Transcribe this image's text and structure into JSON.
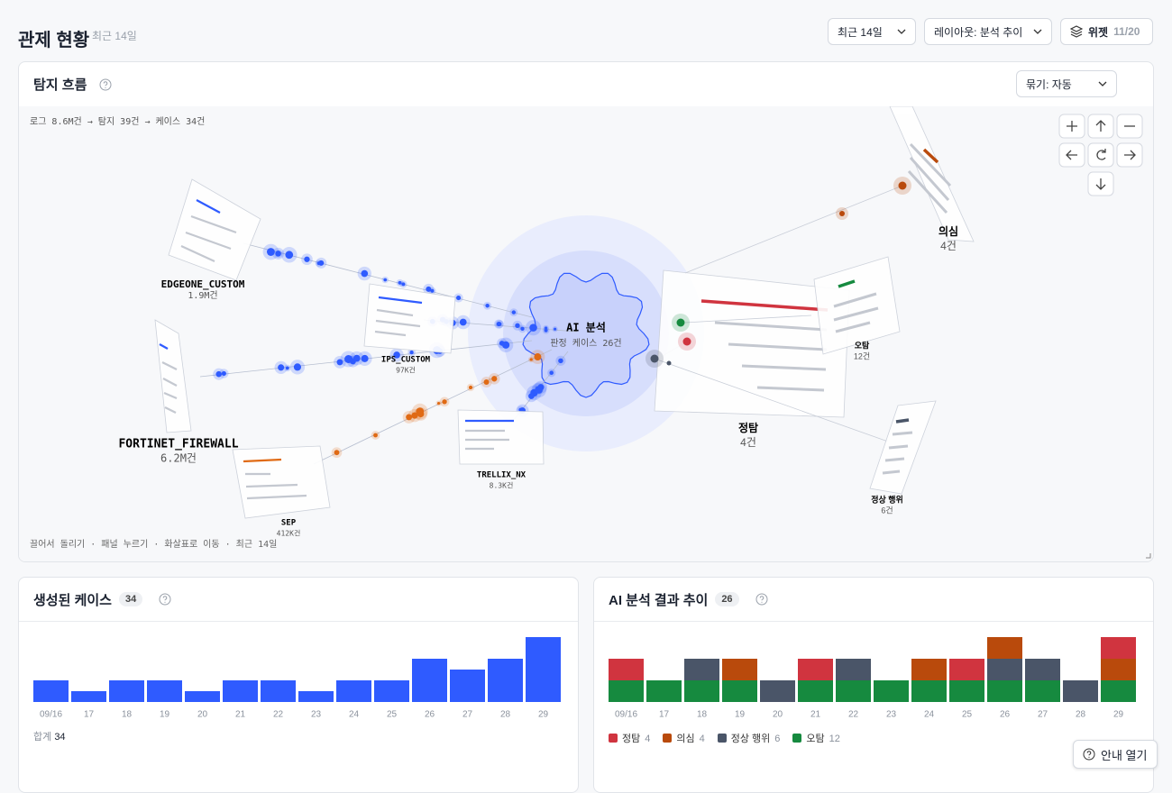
{
  "header": {
    "title": "관제 현황",
    "subtitle": "최근 14일",
    "range_button": "최근 14일",
    "layout_button": "레이아웃: 분석 추이",
    "widget_button": "위젯",
    "widget_count": "11/20"
  },
  "flow": {
    "title": "탐지 흐름",
    "group_select": "묶기: 자동",
    "summary": "로그 8.6M건 → 탐지 39건 → 케이스 34건",
    "hint": "끌어서 돌리기 · 패널 누르기 · 화살표로 이동 · 최근 14일",
    "center": {
      "label": "AI 분석",
      "sublabel": "판정 케이스 26건"
    },
    "sources": [
      {
        "name": "EDGEONE_CUSTOM",
        "count": "1.9M건"
      },
      {
        "name": "FORTINET_FIREWALL",
        "count": "6.2M건"
      },
      {
        "name": "IPS_CUSTOM",
        "count": "97K건"
      },
      {
        "name": "TRELLIX_NX",
        "count": "8.3K건"
      },
      {
        "name": "SEP",
        "count": "412K건"
      }
    ],
    "outcomes": [
      {
        "name": "정탐",
        "count": "4건"
      },
      {
        "name": "의심",
        "count": "4건"
      },
      {
        "name": "오탐",
        "count": "12건"
      },
      {
        "name": "정상 행위",
        "count": "6건"
      }
    ]
  },
  "chart_data": [
    {
      "type": "bar",
      "title": "생성된 케이스",
      "badge": 34,
      "categories": [
        "09/16",
        "17",
        "18",
        "19",
        "20",
        "21",
        "22",
        "23",
        "24",
        "25",
        "26",
        "27",
        "28",
        "29"
      ],
      "values": [
        2,
        1,
        2,
        2,
        1,
        2,
        2,
        1,
        2,
        2,
        4,
        3,
        4,
        6
      ],
      "color": "#2f5bff",
      "ylim": [
        0,
        6
      ],
      "total_label": "합계",
      "total": 34
    },
    {
      "type": "stacked_bar",
      "title": "AI 분석 결과 추이",
      "badge": 26,
      "categories": [
        "09/16",
        "17",
        "18",
        "19",
        "20",
        "21",
        "22",
        "23",
        "24",
        "25",
        "26",
        "27",
        "28",
        "29"
      ],
      "ylim": [
        0,
        3
      ],
      "series": [
        {
          "name": "정탐",
          "color": "#d0343f",
          "total": 4,
          "values": [
            1,
            0,
            0,
            0,
            0,
            1,
            0,
            0,
            0,
            1,
            0,
            0,
            0,
            1
          ]
        },
        {
          "name": "의심",
          "color": "#b94a0c",
          "total": 4,
          "values": [
            0,
            0,
            0,
            1,
            0,
            0,
            0,
            0,
            1,
            0,
            1,
            0,
            0,
            1
          ]
        },
        {
          "name": "정상 행위",
          "color": "#4a5568",
          "total": 6,
          "values": [
            0,
            0,
            1,
            0,
            1,
            0,
            1,
            0,
            0,
            0,
            1,
            1,
            1,
            0
          ]
        },
        {
          "name": "오탐",
          "color": "#168a3f",
          "total": 12,
          "values": [
            1,
            1,
            1,
            1,
            0,
            1,
            1,
            1,
            1,
            1,
            1,
            1,
            0,
            1
          ]
        }
      ]
    }
  ],
  "help_button": "안내 열기"
}
